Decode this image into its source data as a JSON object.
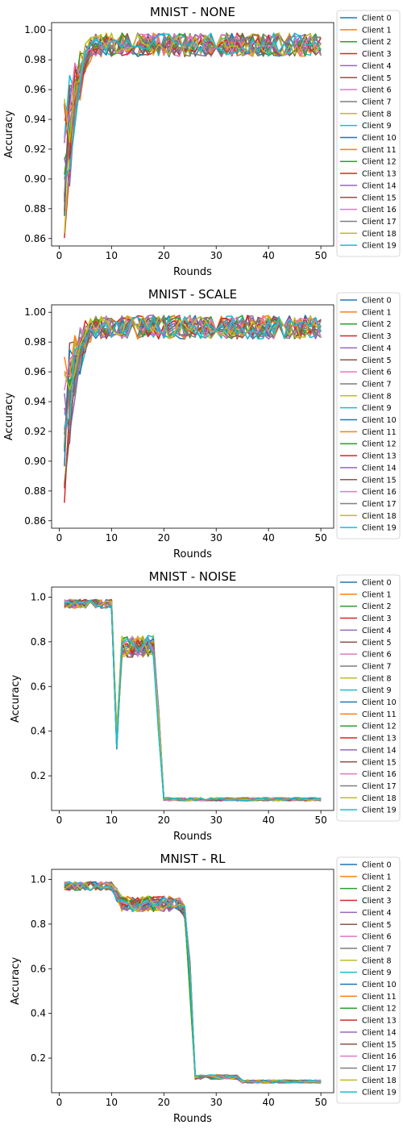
{
  "palette": [
    "#1f77b4",
    "#ff7f0e",
    "#2ca02c",
    "#d62728",
    "#9467bd",
    "#8c564b",
    "#e377c2",
    "#7f7f7f",
    "#bcbd22",
    "#17becf"
  ],
  "legend_entries": [
    "Client 0",
    "Client 1",
    "Client 2",
    "Client 3",
    "Client 4",
    "Client 5",
    "Client 6",
    "Client 7",
    "Client 8",
    "Client 9",
    "Client 10",
    "Client 11",
    "Client 12",
    "Client 13",
    "Client 14",
    "Client 15",
    "Client 16",
    "Client 17",
    "Client 18",
    "Client 19"
  ],
  "chart_data": [
    {
      "type": "line",
      "title": "MNIST - NONE",
      "xlabel": "Rounds",
      "ylabel": "Accuracy",
      "xlim": [
        -1.45,
        52.45
      ],
      "ylim": [
        0.855,
        1.005
      ],
      "xticks": [
        0,
        10,
        20,
        30,
        40,
        50
      ],
      "xtick_labels": [
        "0",
        "10",
        "20",
        "30",
        "40",
        "50"
      ],
      "yticks": [
        0.86,
        0.88,
        0.9,
        0.92,
        0.94,
        0.96,
        0.98,
        1.0
      ],
      "ytick_labels": [
        "0.86",
        "0.88",
        "0.90",
        "0.92",
        "0.94",
        "0.96",
        "0.98",
        "1.00"
      ],
      "grid": false,
      "legend": "outside-right",
      "series_count": 20,
      "profile": {
        "start": 0.91,
        "start_spread": 0.05,
        "plateau": 0.99,
        "rise_rounds": 6,
        "noise": 0.008,
        "cap": 1.0
      }
    },
    {
      "type": "line",
      "title": "MNIST - SCALE",
      "xlabel": "Rounds",
      "ylabel": "Accuracy",
      "xlim": [
        -1.45,
        52.45
      ],
      "ylim": [
        0.855,
        1.005
      ],
      "xticks": [
        0,
        10,
        20,
        30,
        40,
        50
      ],
      "xtick_labels": [
        "0",
        "10",
        "20",
        "30",
        "40",
        "50"
      ],
      "yticks": [
        0.86,
        0.88,
        0.9,
        0.92,
        0.94,
        0.96,
        0.98,
        1.0
      ],
      "ytick_labels": [
        "0.86",
        "0.88",
        "0.90",
        "0.92",
        "0.94",
        "0.96",
        "0.98",
        "1.00"
      ],
      "grid": false,
      "legend": "outside-right",
      "series_count": 20,
      "profile": {
        "start": 0.92,
        "start_spread": 0.05,
        "plateau": 0.99,
        "rise_rounds": 6,
        "noise": 0.008,
        "cap": 1.0
      }
    },
    {
      "type": "line",
      "title": "MNIST - NOISE",
      "xlabel": "Rounds",
      "ylabel": "Accuracy",
      "xlim": [
        -1.45,
        52.45
      ],
      "ylim": [
        0.045,
        1.045
      ],
      "xticks": [
        0,
        10,
        20,
        30,
        40,
        50
      ],
      "xtick_labels": [
        "0",
        "10",
        "20",
        "30",
        "40",
        "50"
      ],
      "yticks": [
        0.2,
        0.4,
        0.6,
        0.8,
        1.0
      ],
      "ytick_labels": [
        "0.2",
        "0.4",
        "0.6",
        "0.8",
        "1.0"
      ],
      "grid": false,
      "legend": "outside-right",
      "series_count": 20,
      "phases": [
        {
          "from": 1,
          "to": 10,
          "level": 0.97,
          "noise": 0.02
        },
        {
          "from": 11,
          "to": 11,
          "level": 0.36,
          "noise": 0.04
        },
        {
          "from": 12,
          "to": 18,
          "level": 0.78,
          "noise": 0.05
        },
        {
          "from": 19,
          "to": 19,
          "level": 0.45,
          "noise": 0.06
        },
        {
          "from": 20,
          "to": 50,
          "level": 0.095,
          "noise": 0.007
        }
      ]
    },
    {
      "type": "line",
      "title": "MNIST - RL",
      "xlabel": "Rounds",
      "ylabel": "Accuracy",
      "xlim": [
        -1.45,
        52.45
      ],
      "ylim": [
        0.045,
        1.045
      ],
      "xticks": [
        0,
        10,
        20,
        30,
        40,
        50
      ],
      "xtick_labels": [
        "0",
        "10",
        "20",
        "30",
        "40",
        "50"
      ],
      "yticks": [
        0.2,
        0.4,
        0.6,
        0.8,
        1.0
      ],
      "ytick_labels": [
        "0.2",
        "0.4",
        "0.6",
        "0.8",
        "1.0"
      ],
      "grid": false,
      "legend": "outside-right",
      "series_count": 20,
      "phases": [
        {
          "from": 1,
          "to": 10,
          "level": 0.97,
          "noise": 0.02
        },
        {
          "from": 11,
          "to": 11,
          "level": 0.93,
          "noise": 0.03
        },
        {
          "from": 12,
          "to": 23,
          "level": 0.89,
          "noise": 0.035
        },
        {
          "from": 24,
          "to": 24,
          "level": 0.85,
          "noise": 0.03
        },
        {
          "from": 25,
          "to": 25,
          "level": 0.55,
          "noise": 0.08
        },
        {
          "from": 26,
          "to": 34,
          "level": 0.115,
          "noise": 0.01
        },
        {
          "from": 35,
          "to": 50,
          "level": 0.095,
          "noise": 0.007
        }
      ]
    }
  ]
}
